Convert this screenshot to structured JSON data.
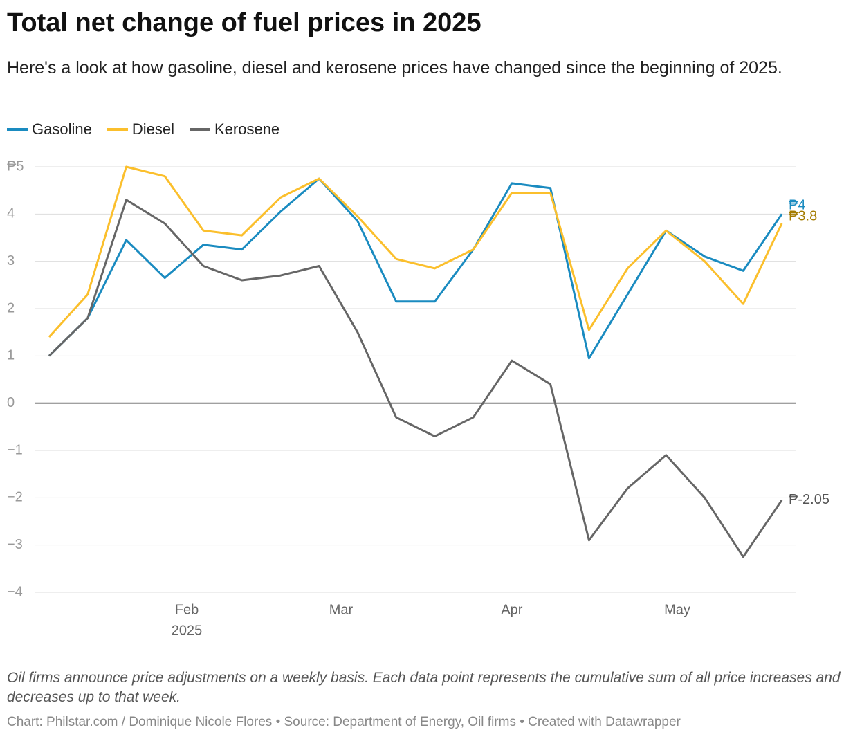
{
  "chart_data": {
    "type": "line",
    "title": "Total net change of fuel prices in 2025",
    "subtitle": "Here's a look at how gasoline, diesel and kerosene prices have changed since the beginning of 2025.",
    "notes": "Oil firms announce price adjustments on a weekly basis. Each data point represents the cumulative sum of all price increases and decreases up to that week.",
    "footer": "Chart: Philstar.com / Dominique Nicole Flores • Source: Department of Energy, Oil firms • Created with Datawrapper",
    "categories": [
      null,
      null,
      null,
      null,
      null,
      null,
      null,
      null,
      null,
      null,
      null,
      null,
      null,
      null,
      null,
      null,
      null,
      null,
      null,
      null
    ],
    "xticks": [
      {
        "value": 3.57,
        "label": "Feb"
      },
      {
        "value": 7.57,
        "label": "Mar"
      },
      {
        "value": 12,
        "label": "Apr"
      },
      {
        "value": 16.29,
        "label": "May"
      }
    ],
    "xtick_year": "2025",
    "ylim": [
      -4,
      5
    ],
    "yticks": [
      {
        "value": -4,
        "label": "−4"
      },
      {
        "value": -3,
        "label": "−3"
      },
      {
        "value": -2,
        "label": "−2"
      },
      {
        "value": -1,
        "label": "−1"
      },
      0,
      1,
      2,
      3,
      4,
      {
        "value": 5,
        "label": "₱5"
      }
    ],
    "grid": true,
    "series": [
      {
        "name": "Gasoline",
        "color": "#1a8bc0",
        "label_color": "#1a8bc0",
        "values": [
          1.0,
          1.8,
          3.45,
          2.65,
          3.35,
          3.25,
          4.05,
          4.75,
          3.85,
          2.15,
          2.15,
          3.25,
          4.65,
          4.55,
          0.95,
          2.3,
          3.65,
          3.1,
          2.8,
          4.0
        ],
        "value_labels": [
          null,
          null,
          null,
          null,
          null,
          null,
          null,
          null,
          null,
          null,
          null,
          null,
          null,
          null,
          null,
          null,
          null,
          null,
          null,
          "₱4"
        ]
      },
      {
        "name": "Diesel",
        "color": "#fbbf2c",
        "label_color": "#a47c00",
        "values": [
          1.4,
          2.3,
          5.0,
          4.8,
          3.65,
          3.55,
          4.35,
          4.75,
          3.95,
          3.05,
          2.85,
          3.25,
          4.45,
          4.45,
          1.55,
          2.85,
          3.65,
          3.0,
          2.1,
          3.8
        ],
        "value_labels": [
          null,
          null,
          null,
          null,
          null,
          null,
          null,
          null,
          null,
          null,
          null,
          null,
          null,
          null,
          null,
          null,
          null,
          null,
          null,
          "₱3.8"
        ]
      },
      {
        "name": "Kerosene",
        "color": "#666666",
        "label_color": "#555555",
        "values": [
          1.0,
          1.8,
          4.3,
          3.8,
          2.9,
          2.6,
          2.7,
          2.9,
          1.5,
          -0.3,
          -0.7,
          -0.3,
          0.9,
          0.4,
          -2.9,
          -1.8,
          -1.1,
          -2.0,
          -3.25,
          -2.05
        ],
        "value_labels": [
          null,
          null,
          null,
          null,
          null,
          null,
          null,
          null,
          null,
          null,
          null,
          null,
          null,
          null,
          null,
          null,
          null,
          null,
          null,
          "₱-2.05"
        ]
      }
    ]
  }
}
